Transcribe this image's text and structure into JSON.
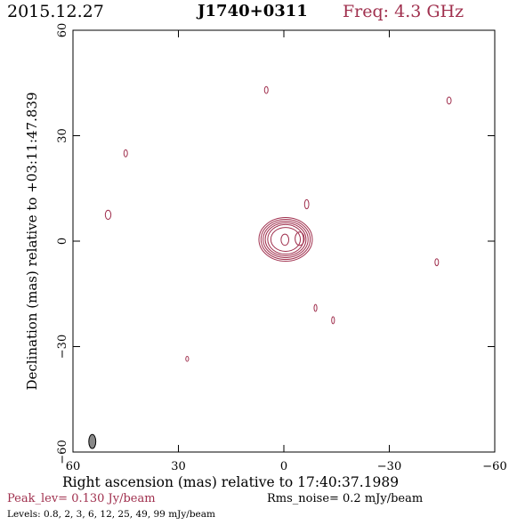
{
  "header": {
    "date": "2015.12.27",
    "source": "J1740+0311",
    "frequency": "Freq: 4.3 GHz"
  },
  "footer": {
    "peak": "Peak_lev=  0.130 Jy/beam",
    "rms": "Rms_noise=  0.2 mJy/beam",
    "levels": "Levels: 0.8,   2,   3,   6,  12,  25,  49,  99 mJy/beam"
  },
  "colors": {
    "contour": "#a0304e",
    "beam": "#888888",
    "axes": "#000000"
  },
  "chart_data": {
    "type": "contour",
    "xlabel": "Right ascension (mas) relative to 17:40:37.1989",
    "ylabel": "Declination (mas) relative to +03:11:47.839",
    "xlim": [
      60,
      -60
    ],
    "ylim": [
      -60,
      60
    ],
    "xticks": [
      60,
      30,
      0,
      -30,
      -60
    ],
    "yticks": [
      -60,
      -30,
      0,
      30,
      60
    ],
    "xtick_labels": [
      "60",
      "30",
      "0",
      "−30",
      "−60"
    ],
    "ytick_labels": [
      "−60",
      "−30",
      "0",
      "30",
      "60"
    ],
    "contour_levels_mJy": [
      0.8,
      2,
      3,
      6,
      12,
      25,
      49,
      99
    ],
    "main_source": {
      "x": -0.5,
      "y": 0.5,
      "levels": [
        {
          "rx": 7.6,
          "ry": 6.2
        },
        {
          "rx": 7.0,
          "ry": 5.7
        },
        {
          "rx": 6.4,
          "ry": 5.2
        },
        {
          "rx": 5.8,
          "ry": 4.7
        },
        {
          "rx": 5.1,
          "ry": 4.2
        },
        {
          "rx": 4.2,
          "ry": 3.4
        }
      ],
      "peaks": [
        {
          "x": -0.3,
          "y": 0.4,
          "rx": 1.1,
          "ry": 1.6
        },
        {
          "x": -4.5,
          "y": 0.7,
          "rx": 1.3,
          "ry": 1.9
        }
      ]
    },
    "noise_blobs": [
      {
        "x": 5.0,
        "y": 43.0,
        "rx": 0.5,
        "ry": 1.0
      },
      {
        "x": -47.0,
        "y": 40.0,
        "rx": 0.6,
        "ry": 1.0
      },
      {
        "x": 45.0,
        "y": 25.0,
        "rx": 0.5,
        "ry": 1.0
      },
      {
        "x": 50.0,
        "y": 7.5,
        "rx": 0.8,
        "ry": 1.3
      },
      {
        "x": -6.5,
        "y": 10.5,
        "rx": 0.6,
        "ry": 1.3
      },
      {
        "x": -43.5,
        "y": -6.0,
        "rx": 0.5,
        "ry": 1.0
      },
      {
        "x": -9.0,
        "y": -19.0,
        "rx": 0.4,
        "ry": 1.0
      },
      {
        "x": -14.0,
        "y": -22.5,
        "rx": 0.4,
        "ry": 1.0
      },
      {
        "x": 27.5,
        "y": -33.5,
        "rx": 0.4,
        "ry": 0.7
      }
    ],
    "beam": {
      "x": 54.5,
      "y": -57.0,
      "rx": 1.0,
      "ry": 2.0
    }
  }
}
